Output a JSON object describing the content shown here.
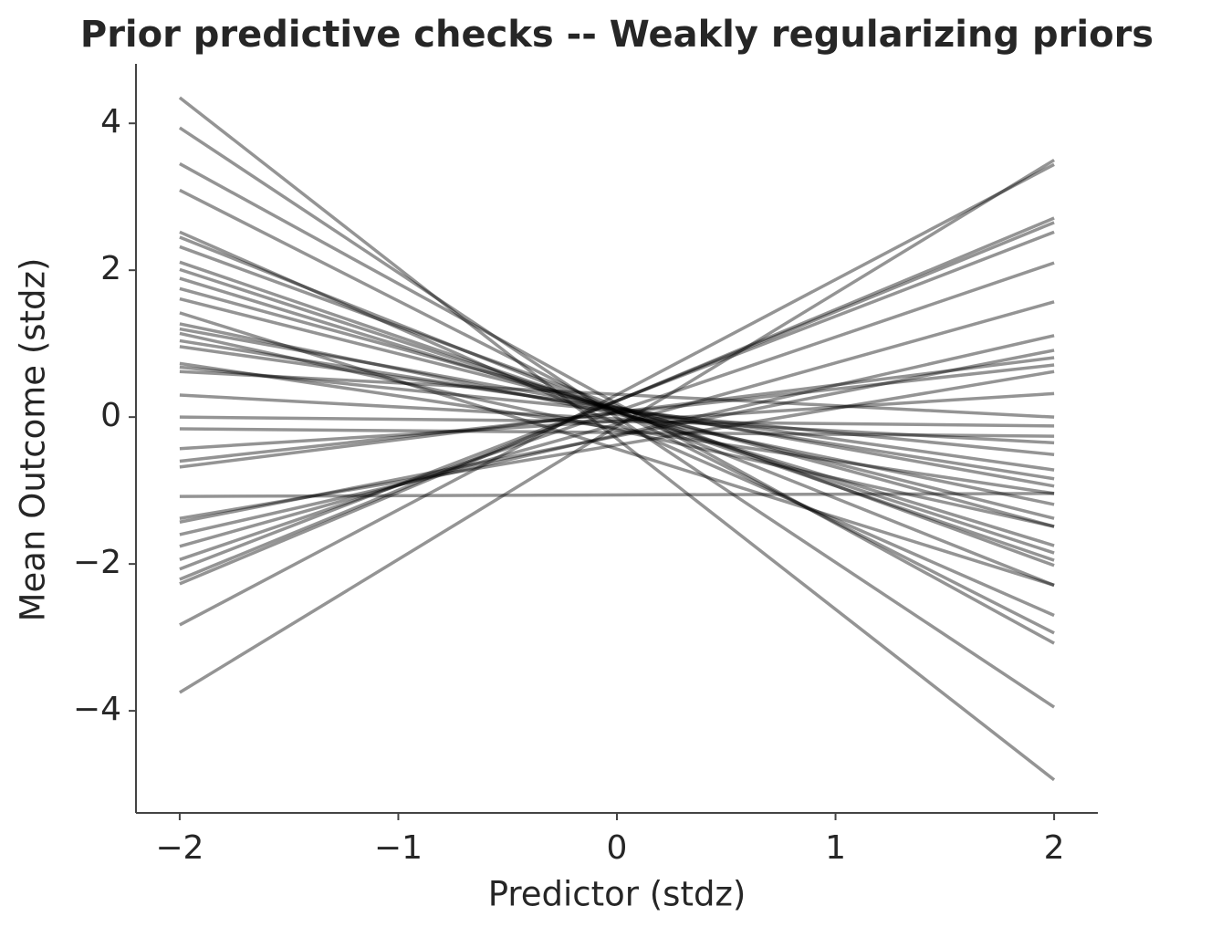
{
  "chart_data": {
    "type": "line",
    "title": "Prior predictive checks -- Weakly regularizing priors",
    "xlabel": "Predictor (stdz)",
    "ylabel": "Mean Outcome (stdz)",
    "x": [
      -2,
      2
    ],
    "color": "#000000",
    "opacity": 0.42,
    "xlim": [
      -2.2,
      2.2
    ],
    "ylim": [
      -5.39,
      4.81
    ],
    "xticks": [
      {
        "value": -2,
        "label": "−2"
      },
      {
        "value": -1,
        "label": "−1"
      },
      0,
      1,
      2
    ],
    "yticks": [
      {
        "value": -4,
        "label": "−4"
      },
      {
        "value": -2,
        "label": "−2"
      },
      0,
      2,
      4
    ],
    "series": [
      {
        "values": [
          4.35,
          -4.94
        ]
      },
      {
        "values": [
          3.94,
          -3.95
        ]
      },
      {
        "values": [
          3.45,
          -3.08
        ]
      },
      {
        "values": [
          3.09,
          -2.94
        ]
      },
      {
        "values": [
          2.52,
          -2.7
        ]
      },
      {
        "values": [
          2.45,
          -2.29
        ]
      },
      {
        "values": [
          2.32,
          -2.02
        ]
      },
      {
        "values": [
          2.11,
          -1.95
        ]
      },
      {
        "values": [
          2.01,
          -1.85
        ]
      },
      {
        "values": [
          1.89,
          -1.75
        ]
      },
      {
        "values": [
          1.75,
          -1.49
        ]
      },
      {
        "values": [
          1.61,
          -1.38
        ]
      },
      {
        "values": [
          1.42,
          -2.29
        ]
      },
      {
        "values": [
          1.27,
          -1.19
        ]
      },
      {
        "values": [
          1.2,
          -0.94
        ]
      },
      {
        "values": [
          1.14,
          -1.49
        ]
      },
      {
        "values": [
          1.04,
          -0.84
        ]
      },
      {
        "values": [
          0.96,
          -0.72
        ]
      },
      {
        "values": [
          0.73,
          -1.04
        ]
      },
      {
        "values": [
          0.68,
          -0.51
        ]
      },
      {
        "values": [
          0.62,
          0
        ]
      },
      {
        "values": [
          0.3,
          -0.35
        ]
      },
      {
        "values": [
          0,
          -0.12
        ]
      },
      {
        "values": [
          -0.16,
          -0.26
        ]
      },
      {
        "values": [
          -0.43,
          0.32
        ]
      },
      {
        "values": [
          -0.6,
          0.71
        ]
      },
      {
        "values": [
          -0.68,
          0.81
        ]
      },
      {
        "values": [
          -1.08,
          -1.04
        ]
      },
      {
        "values": [
          -1.38,
          0.62
        ]
      },
      {
        "values": [
          -1.43,
          0.91
        ]
      },
      {
        "values": [
          -1.6,
          1.11
        ]
      },
      {
        "values": [
          -1.76,
          1.57
        ]
      },
      {
        "values": [
          -1.94,
          2.1
        ]
      },
      {
        "values": [
          -2.07,
          2.52
        ]
      },
      {
        "values": [
          -2.21,
          2.65
        ]
      },
      {
        "values": [
          -2.27,
          2.71
        ]
      },
      {
        "values": [
          -2.83,
          3.44
        ]
      },
      {
        "values": [
          -3.75,
          3.5
        ]
      }
    ]
  }
}
